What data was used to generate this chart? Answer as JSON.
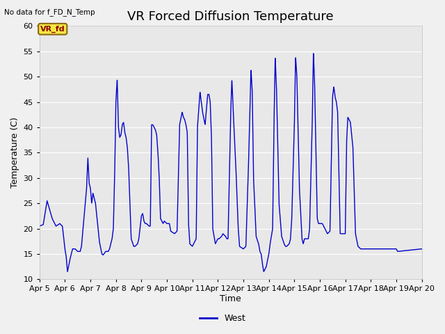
{
  "title": "VR Forced Diffusion Temperature",
  "top_left_text": "No data for f_FD_N_Temp",
  "ylabel": "Temperature (C)",
  "xlabel": "Time",
  "ylim": [
    10,
    60
  ],
  "xlim": [
    0,
    15
  ],
  "yticks": [
    10,
    15,
    20,
    25,
    30,
    35,
    40,
    45,
    50,
    55,
    60
  ],
  "xtick_labels": [
    "Apr 5",
    "Apr 6",
    "Apr 7",
    "Apr 8",
    "Apr 9",
    "Apr 10",
    "Apr 11",
    "Apr 12",
    "Apr 13",
    "Apr 14",
    "Apr 15",
    "Apr 16",
    "Apr 17",
    "Apr 18",
    "Apr 19",
    "Apr 20"
  ],
  "line_color": "#0000cc",
  "bg_color": "#e8e8e8",
  "fig_color": "#f0f0f0",
  "legend_label": "West",
  "vr_fd_label": "VR_fd",
  "title_fontsize": 13,
  "label_fontsize": 9,
  "tick_fontsize": 8
}
